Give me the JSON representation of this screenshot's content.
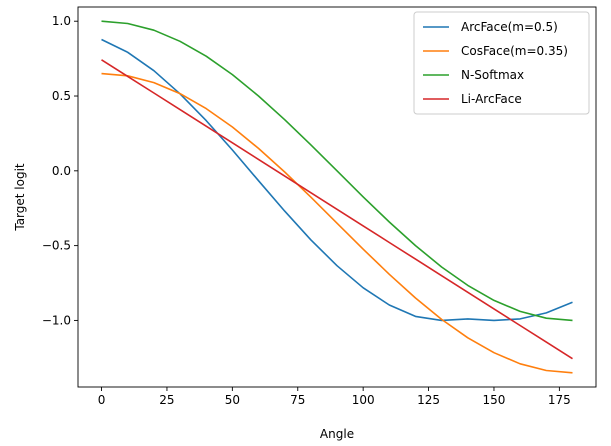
{
  "chart_data": {
    "type": "line",
    "title": "",
    "xlabel": "Angle",
    "ylabel": "Target logit",
    "xlim": [
      -9,
      189
    ],
    "ylim": [
      -1.445,
      1.095
    ],
    "xticks": [
      0,
      25,
      50,
      75,
      100,
      125,
      150,
      175
    ],
    "yticks": [
      1.0,
      0.5,
      0.0,
      -0.5,
      -1.0
    ],
    "ytick_labels": [
      "1.0",
      "0.5",
      "0.0",
      "−0.5",
      "−1.0"
    ],
    "grid": false,
    "legend_position": "top-right",
    "x": [
      0,
      10,
      20,
      30,
      40,
      50,
      60,
      70,
      80,
      90,
      100,
      110,
      120,
      130,
      140,
      150,
      160,
      170,
      180
    ],
    "series": [
      {
        "name": "ArcFace(m=0.5)",
        "color": "#1f77b4",
        "values": [
          0.878,
          0.792,
          0.669,
          0.515,
          0.336,
          0.139,
          -0.066,
          -0.269,
          -0.461,
          -0.634,
          -0.782,
          -0.897,
          -0.973,
          -1.0,
          -0.99,
          -1.0,
          -0.99,
          -0.95,
          -0.878
        ]
      },
      {
        "name": "CosFace(m=0.35)",
        "color": "#ff7f0e",
        "values": [
          0.65,
          0.635,
          0.59,
          0.516,
          0.416,
          0.293,
          0.15,
          -0.008,
          -0.176,
          -0.35,
          -0.524,
          -0.692,
          -0.85,
          -0.993,
          -1.116,
          -1.216,
          -1.29,
          -1.335,
          -1.35
        ]
      },
      {
        "name": "N-Softmax",
        "color": "#2ca02c",
        "values": [
          1.0,
          0.985,
          0.94,
          0.866,
          0.766,
          0.643,
          0.5,
          0.342,
          0.174,
          0.0,
          -0.174,
          -0.342,
          -0.5,
          -0.643,
          -0.766,
          -0.866,
          -0.94,
          -0.985,
          -1.0
        ]
      },
      {
        "name": "Li-ArcFace",
        "color": "#d62728",
        "values": [
          0.742,
          0.631,
          0.52,
          0.409,
          0.298,
          0.187,
          0.076,
          -0.035,
          -0.146,
          -0.257,
          -0.368,
          -0.479,
          -0.59,
          -0.701,
          -0.812,
          -0.923,
          -1.034,
          -1.145,
          -1.256
        ]
      }
    ]
  }
}
